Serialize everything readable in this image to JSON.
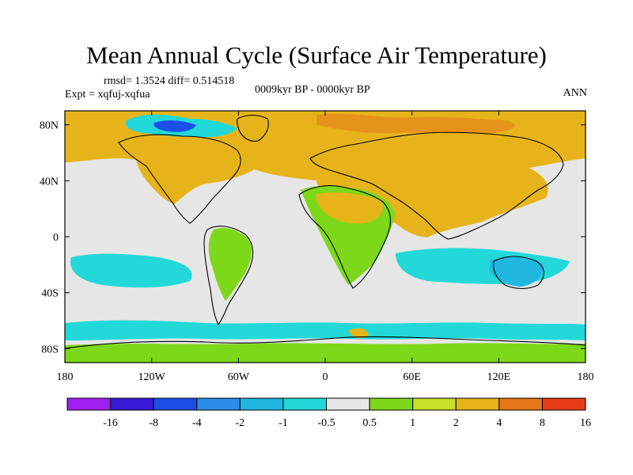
{
  "title": "Mean Annual Cycle (Surface Air Temperature)",
  "stats": "rmsd= 1.3524 diff= 0.514518",
  "experiment": "Expt = xqfuj-xqfua",
  "period": "0009kyr BP - 0000kyr BP",
  "season": "ANN",
  "chart_data": {
    "type": "heatmap",
    "variable": "Surface Air Temperature difference",
    "x_range": [
      -180,
      180
    ],
    "y_range": [
      -90,
      90
    ],
    "x_ticks": [
      {
        "value": -180,
        "label": "180"
      },
      {
        "value": -120,
        "label": "120W"
      },
      {
        "value": -60,
        "label": "60W"
      },
      {
        "value": 0,
        "label": "0"
      },
      {
        "value": 60,
        "label": "60E"
      },
      {
        "value": 120,
        "label": "120E"
      },
      {
        "value": 180,
        "label": "180"
      }
    ],
    "y_ticks": [
      {
        "value": 80,
        "label": "80N"
      },
      {
        "value": 40,
        "label": "40N"
      },
      {
        "value": 0,
        "label": "0"
      },
      {
        "value": -40,
        "label": "40S"
      },
      {
        "value": -80,
        "label": "80S"
      }
    ],
    "colorbar": {
      "labels": [
        "-16",
        "-8",
        "-4",
        "-2",
        "-1",
        "-0.5",
        "0.5",
        "1",
        "2",
        "4",
        "8",
        "16"
      ],
      "colors": [
        "#a020f0",
        "#3a18d8",
        "#1a50e8",
        "#2a8ee8",
        "#20b8e0",
        "#22d8d8",
        "#e6e6e6",
        "#7ed81a",
        "#c8e028",
        "#e6b41a",
        "#e6781a",
        "#e63a14"
      ]
    }
  }
}
